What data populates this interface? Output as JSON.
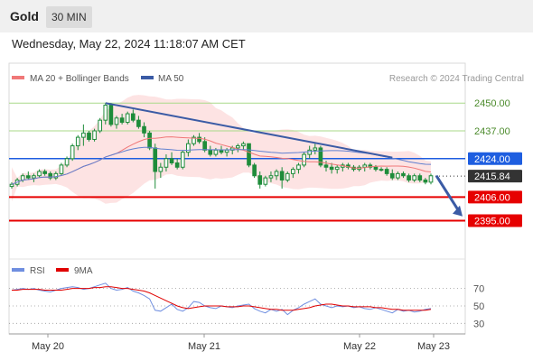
{
  "header": {
    "title": "Gold",
    "timeframe": "30 MIN",
    "datetime": "Wednesday, May 22, 2024 11:18:07 AM CET"
  },
  "legend": {
    "ma20_label": "MA 20 + Bollinger Bands",
    "ma50_label": "MA 50",
    "credit": "Research © 2024 Trading Central",
    "rsi_label": "RSI",
    "ma9_label": "9MA"
  },
  "colors": {
    "candle": "#1e8c3a",
    "ma20": "#f07878",
    "ma50": "#6080d0",
    "band_fill": "#fde3e3",
    "trendline": "#3b5ba5",
    "resistance": "#1e5ee0",
    "support": "#e60000",
    "pivot": "#333333",
    "target_line": "#a9d98a",
    "rsi": "#6f8ee0",
    "rsi_ma": "#e00000"
  },
  "chart_data": [
    {
      "type": "candlestick",
      "yrange": [
        2380,
        2456
      ],
      "x_ticks": [
        "May 20",
        "May 21",
        "May 22",
        "May 23"
      ],
      "price_levels": [
        {
          "value": 2450.0,
          "label": "2450.00",
          "kind": "target"
        },
        {
          "value": 2437.0,
          "label": "2437.00",
          "kind": "target"
        },
        {
          "value": 2424.0,
          "label": "2424.00",
          "kind": "resistance"
        },
        {
          "value": 2415.84,
          "label": "2415.84",
          "kind": "pivot"
        },
        {
          "value": 2406.0,
          "label": "2406.00",
          "kind": "support"
        },
        {
          "value": 2395.0,
          "label": "2395.00",
          "kind": "support"
        }
      ],
      "trendline": [
        [
          2450,
          2424.5
        ],
        [
          2424.5,
          2424
        ]
      ],
      "forecast_arrow": {
        "from": 2416,
        "to": 2397
      },
      "candles": [
        [
          2411,
          2413,
          2410,
          2412
        ],
        [
          2412,
          2415,
          2411,
          2414
        ],
        [
          2414,
          2417,
          2413,
          2416
        ],
        [
          2416,
          2418,
          2414,
          2415
        ],
        [
          2415,
          2417,
          2413,
          2416
        ],
        [
          2416,
          2419,
          2415,
          2418
        ],
        [
          2418,
          2419,
          2416,
          2417
        ],
        [
          2417,
          2418,
          2414,
          2415
        ],
        [
          2415,
          2418,
          2414,
          2417
        ],
        [
          2417,
          2422,
          2416,
          2421
        ],
        [
          2421,
          2425,
          2420,
          2424
        ],
        [
          2424,
          2431,
          2423,
          2430
        ],
        [
          2430,
          2435,
          2428,
          2434
        ],
        [
          2434,
          2440,
          2430,
          2436
        ],
        [
          2436,
          2437,
          2432,
          2433
        ],
        [
          2433,
          2438,
          2432,
          2437
        ],
        [
          2437,
          2443,
          2436,
          2442
        ],
        [
          2442,
          2450,
          2440,
          2449
        ],
        [
          2449,
          2450,
          2439,
          2440
        ],
        [
          2440,
          2444,
          2438,
          2443
        ],
        [
          2443,
          2445,
          2440,
          2441
        ],
        [
          2441,
          2446,
          2440,
          2445
        ],
        [
          2445,
          2447,
          2441,
          2442
        ],
        [
          2442,
          2444,
          2438,
          2439
        ],
        [
          2439,
          2441,
          2434,
          2436
        ],
        [
          2436,
          2437,
          2428,
          2429
        ],
        [
          2429,
          2431,
          2410,
          2418
        ],
        [
          2418,
          2422,
          2415,
          2420
        ],
        [
          2420,
          2426,
          2418,
          2424
        ],
        [
          2424,
          2427,
          2421,
          2422
        ],
        [
          2422,
          2424,
          2419,
          2420
        ],
        [
          2420,
          2428,
          2419,
          2427
        ],
        [
          2427,
          2433,
          2425,
          2431
        ],
        [
          2431,
          2435,
          2430,
          2434
        ],
        [
          2434,
          2436,
          2431,
          2432
        ],
        [
          2432,
          2434,
          2427,
          2428
        ],
        [
          2428,
          2430,
          2425,
          2426
        ],
        [
          2426,
          2429,
          2425,
          2428
        ],
        [
          2428,
          2430,
          2426,
          2427
        ],
        [
          2427,
          2429,
          2425,
          2428
        ],
        [
          2428,
          2430,
          2426,
          2429
        ],
        [
          2429,
          2431,
          2427,
          2430
        ],
        [
          2430,
          2432,
          2428,
          2431
        ],
        [
          2431,
          2431,
          2420,
          2421
        ],
        [
          2421,
          2422,
          2415,
          2416
        ],
        [
          2416,
          2418,
          2410,
          2412
        ],
        [
          2412,
          2416,
          2411,
          2415
        ],
        [
          2415,
          2418,
          2413,
          2416
        ],
        [
          2416,
          2419,
          2414,
          2418
        ],
        [
          2418,
          2420,
          2410,
          2414
        ],
        [
          2414,
          2418,
          2413,
          2417
        ],
        [
          2417,
          2420,
          2415,
          2419
        ],
        [
          2419,
          2422,
          2417,
          2421
        ],
        [
          2421,
          2427,
          2420,
          2426
        ],
        [
          2426,
          2430,
          2424,
          2428
        ],
        [
          2428,
          2431,
          2426,
          2429
        ],
        [
          2429,
          2430,
          2420,
          2421
        ],
        [
          2421,
          2423,
          2418,
          2420
        ],
        [
          2420,
          2422,
          2417,
          2419
        ],
        [
          2419,
          2421,
          2417,
          2420
        ],
        [
          2420,
          2422,
          2418,
          2421
        ],
        [
          2421,
          2422,
          2419,
          2420
        ],
        [
          2420,
          2421,
          2418,
          2419
        ],
        [
          2419,
          2421,
          2418,
          2420
        ],
        [
          2420,
          2422,
          2418,
          2421
        ],
        [
          2421,
          2422,
          2419,
          2420
        ],
        [
          2420,
          2421,
          2418,
          2419
        ],
        [
          2419,
          2420,
          2418,
          2419
        ],
        [
          2419,
          2420,
          2416,
          2417
        ],
        [
          2417,
          2419,
          2414,
          2415
        ],
        [
          2415,
          2418,
          2414,
          2417
        ],
        [
          2417,
          2418,
          2415,
          2416
        ],
        [
          2416,
          2417,
          2413,
          2414
        ],
        [
          2414,
          2417,
          2413,
          2416
        ],
        [
          2416,
          2417,
          2413,
          2414
        ],
        [
          2414,
          2415,
          2412,
          2413
        ],
        [
          2413,
          2417,
          2412,
          2416
        ]
      ]
    },
    {
      "type": "line",
      "yticks": [
        70,
        50,
        30
      ],
      "yrange": [
        20,
        82
      ],
      "series": [
        {
          "name": "RSI",
          "values": [
            68,
            69,
            70,
            69,
            70,
            68,
            67,
            66,
            68,
            70,
            71,
            72,
            71,
            69,
            70,
            72,
            74,
            76,
            70,
            68,
            69,
            71,
            67,
            65,
            62,
            58,
            45,
            44,
            48,
            52,
            46,
            44,
            48,
            55,
            54,
            50,
            48,
            47,
            50,
            49,
            48,
            50,
            51,
            52,
            47,
            44,
            42,
            46,
            44,
            46,
            40,
            45,
            48,
            52,
            55,
            58,
            52,
            50,
            48,
            50,
            49,
            50,
            48,
            49,
            47,
            46,
            48,
            46,
            44,
            42,
            46,
            44,
            45,
            43,
            44,
            46,
            47
          ]
        },
        {
          "name": "9MA",
          "values": [
            68,
            68,
            69,
            69,
            69,
            69,
            68,
            68,
            68,
            68,
            69,
            70,
            70,
            70,
            70,
            71,
            71,
            72,
            72,
            71,
            70,
            70,
            69,
            68,
            67,
            65,
            62,
            59,
            56,
            53,
            50,
            48,
            47,
            48,
            49,
            50,
            50,
            50,
            50,
            49,
            49,
            49,
            50,
            50,
            49,
            48,
            47,
            46,
            46,
            45,
            45,
            45,
            46,
            47,
            48,
            50,
            51,
            52,
            52,
            51,
            50,
            50,
            49,
            49,
            49,
            49,
            48,
            48,
            47,
            46,
            46,
            45,
            45,
            45,
            45,
            45,
            46
          ]
        }
      ]
    }
  ]
}
